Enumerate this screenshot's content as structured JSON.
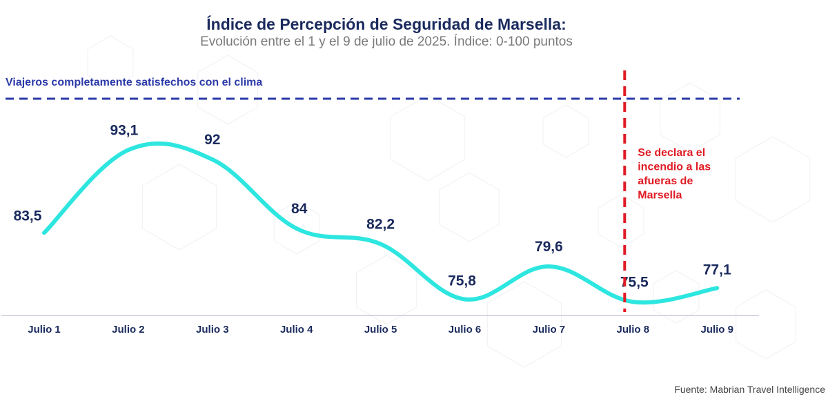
{
  "colors": {
    "title": "#1a2a5e",
    "subtitle": "#7a7a7a",
    "line": "#2ee6e0",
    "reference": "#2b3aa8",
    "event": "#e01b24",
    "axis": "#c8ccd6"
  },
  "chart_data": {
    "type": "line",
    "title": "Índice de Percepción de Seguridad de Marsella:",
    "subtitle": "Evolución entre el 1 y el 9 de julio de 2025. Índice: 0-100 puntos",
    "categories": [
      "Julio 1",
      "Julio 2",
      "Julio 3",
      "Julio 4",
      "Julio 5",
      "Julio 6",
      "Julio 7",
      "Julio 8",
      "Julio 9"
    ],
    "values": [
      83.5,
      93.1,
      92,
      84,
      82.2,
      75.8,
      79.6,
      75.5,
      77.1
    ],
    "value_labels": [
      "83,5",
      "93,1",
      "92",
      "84",
      "82,2",
      "75,8",
      "79,6",
      "75,5",
      "77,1"
    ],
    "ylim": [
      68,
      100
    ],
    "reference_line": {
      "label": "Viajeros completamente satisfechos con el clima",
      "style": "dashed"
    },
    "event_marker": {
      "category": "Julio 8",
      "lines": [
        "Se declara el",
        "incendio a las",
        "afueras de",
        "Marsella"
      ],
      "style": "dashed"
    },
    "source": "Fuente: Mabrian Travel Intelligence"
  }
}
